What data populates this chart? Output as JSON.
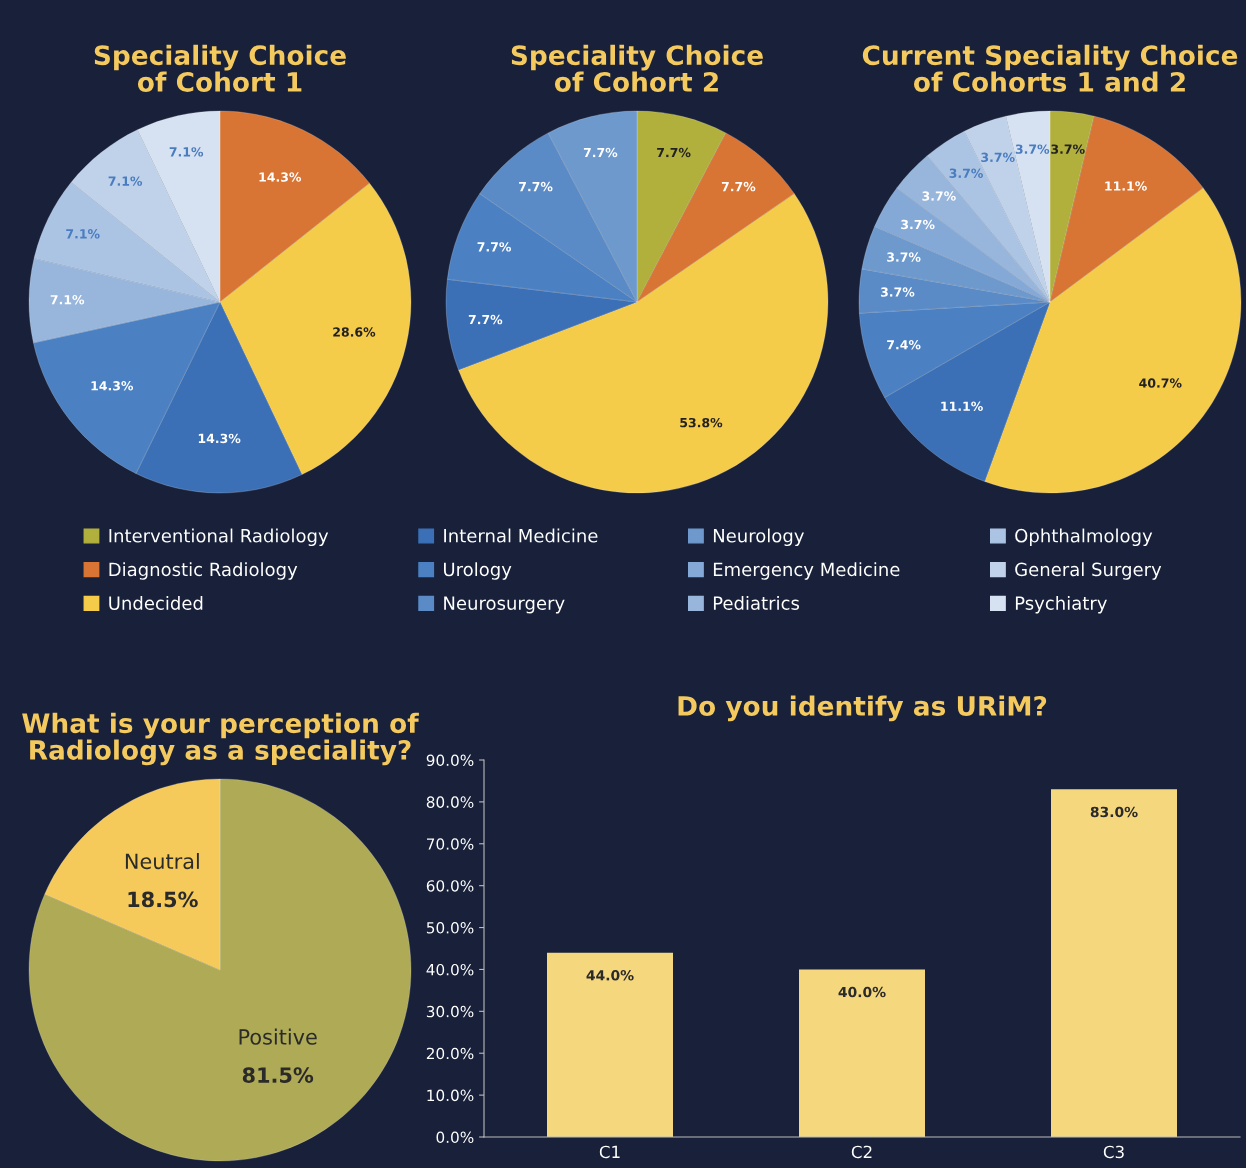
{
  "chart_data": [
    {
      "type": "pie",
      "title": "Speciality Choice\nof Cohort 1",
      "categories": [
        null,
        null,
        null,
        null,
        null,
        null,
        null,
        null
      ],
      "values": [
        14.3,
        28.6,
        14.3,
        14.3,
        7.1,
        7.1,
        7.1,
        7.1
      ],
      "colors": [
        "#d97534",
        "#f5cb4a",
        "#3b70b7",
        "#4b80c2",
        "#98b6dc",
        "#abc4e3",
        "#bfd2ea",
        "#d6e2f1"
      ],
      "value_labels": [
        "14.3%",
        "28.6%",
        "14.3%",
        "14.3%",
        "7.1%",
        "7.1%",
        "7.1%",
        "7.1%"
      ]
    },
    {
      "type": "pie",
      "title": "Speciality Choice\nof Cohort 2",
      "categories": [
        null,
        null,
        null,
        null,
        null,
        null,
        null
      ],
      "values": [
        7.7,
        7.7,
        53.8,
        7.7,
        7.7,
        7.7,
        7.7
      ],
      "colors": [
        "#b2b03c",
        "#d97534",
        "#f5cb4a",
        "#3b70b7",
        "#4b80c2",
        "#5a8bc6",
        "#6d99cd"
      ],
      "value_labels": [
        "7.7%",
        "7.7%",
        "53.8%",
        "7.7%",
        "7.7%",
        "7.7%",
        "7.7%"
      ]
    },
    {
      "type": "pie",
      "title": "Current Speciality Choice\nof Cohorts 1 and 2",
      "categories": [
        "Interventional Radiology",
        "Diagnostic Radiology",
        "Undecided",
        "Internal Medicine",
        "Urology",
        "Neurosurgery",
        "Neurology",
        "Emergency Medicine",
        "Pediatrics",
        "Ophthalmology",
        "General Surgery",
        "Psychiatry"
      ],
      "values": [
        3.7,
        11.1,
        40.7,
        11.1,
        7.4,
        3.7,
        3.7,
        3.7,
        3.7,
        3.7,
        3.7,
        3.7
      ],
      "colors": [
        "#b2b03c",
        "#d97534",
        "#f5cb4a",
        "#3b70b7",
        "#4b80c2",
        "#5a8bc6",
        "#6d99cd",
        "#84a9d7",
        "#98b6dc",
        "#abc4e3",
        "#bfd2ea",
        "#d6e2f1"
      ],
      "value_labels": [
        "3.7%",
        "11.1%",
        "40.7%",
        "11.1%",
        "7.4%",
        "3.7%",
        "3.7%",
        "3.7%",
        "3.7%",
        "3.7%",
        "3.7%",
        "3.7%"
      ],
      "legend": "bottom"
    },
    {
      "type": "pie",
      "title": "What is your perception of\nRadiology as a speciality?",
      "categories": [
        "Positive",
        "Neutral"
      ],
      "values": [
        81.5,
        18.5
      ],
      "colors": [
        "#aeaa55",
        "#f5c95a"
      ],
      "value_labels": [
        "81.5%",
        "18.5%"
      ],
      "legend": false
    },
    {
      "type": "bar",
      "title": "Do you identify as URiM?",
      "categories": [
        "C1",
        "C2",
        "C3"
      ],
      "values": [
        44.0,
        40.0,
        83.0
      ],
      "color": "#f5d77e",
      "value_labels": [
        "44.0%",
        "40.0%",
        "83.0%"
      ],
      "ylim": [
        0,
        90
      ],
      "yticks": [
        {
          "value": 0,
          "label": "0.0%"
        },
        {
          "value": 10,
          "label": "10.0%"
        },
        {
          "value": 20,
          "label": "20.0%"
        },
        {
          "value": 30,
          "label": "30.0%"
        },
        {
          "value": 40,
          "label": "40.0%"
        },
        {
          "value": 50,
          "label": "50.0%"
        },
        {
          "value": 60,
          "label": "60.0%"
        },
        {
          "value": 70,
          "label": "70.0%"
        },
        {
          "value": 80,
          "label": "80.0%"
        },
        {
          "value": 90,
          "label": "90.0%"
        }
      ],
      "grid": false
    }
  ]
}
